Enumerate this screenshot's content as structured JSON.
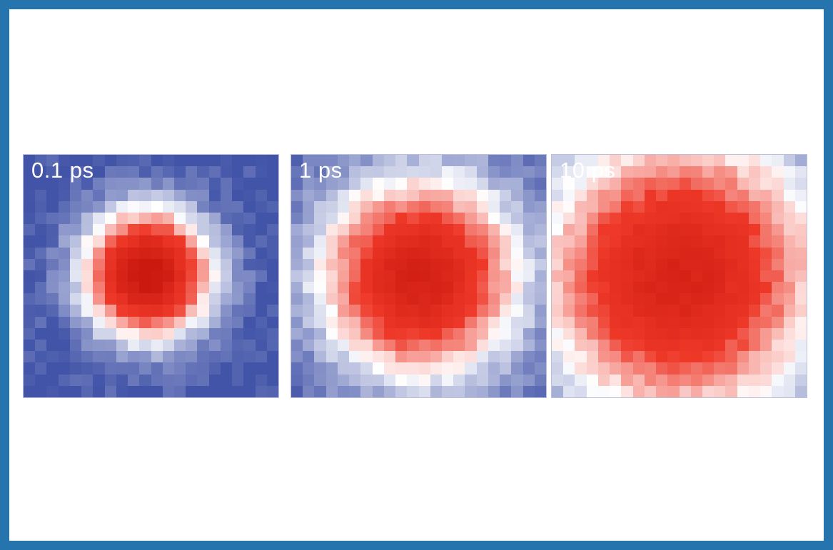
{
  "figure": {
    "border_color": "#2674ad",
    "background_color": "#ffffff"
  },
  "chart_data": {
    "type": "heatmap",
    "title": "",
    "description": "Three pixelated time-resolved heatmap frames showing a Gaussian signal spot that broadens with increasing pump-probe time delay",
    "legend_position": "none",
    "grid": {
      "cols": 22,
      "rows": 21
    },
    "colormap": {
      "meaning": "low signal = blue, mid signal = white, high signal = red",
      "stops": [
        {
          "v": 0.0,
          "color": "#4254a8"
        },
        {
          "v": 0.5,
          "color": "#ffffff"
        },
        {
          "v": 1.0,
          "color": "#ee3828"
        },
        {
          "v": 1.8,
          "color": "#c6140c"
        }
      ]
    },
    "panels": [
      {
        "label": "0.1 ps",
        "center_col": 10.2,
        "center_row": 9.8,
        "sigma_cells": 3.6,
        "peak_amplitude": 1.75,
        "noise_amplitude": 0.07,
        "seed": 3
      },
      {
        "label": "1 ps",
        "center_col": 10.6,
        "center_row": 10.1,
        "sigma_cells": 5.8,
        "peak_amplitude": 1.5,
        "noise_amplitude": 0.07,
        "seed": 7
      },
      {
        "label": "10 ps",
        "center_col": 10.6,
        "center_row": 10.0,
        "sigma_cells": 8.2,
        "peak_amplitude": 1.45,
        "noise_amplitude": 0.07,
        "seed": 11
      }
    ]
  }
}
